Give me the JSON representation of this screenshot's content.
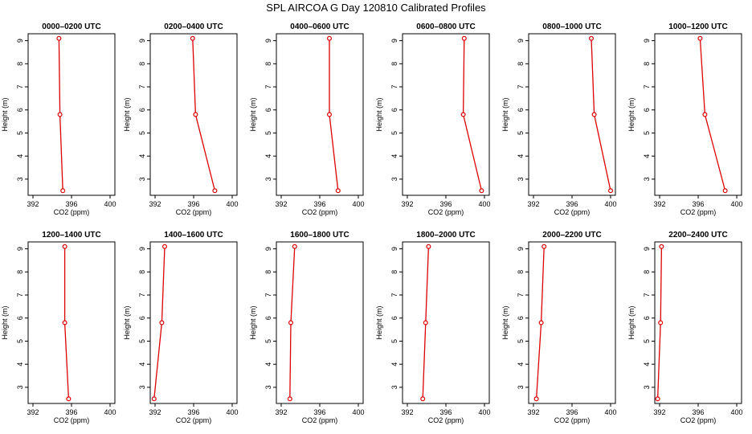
{
  "figure": {
    "title": "SPL AIRCOA G  Day 120810  Calibrated Profiles"
  },
  "style": {
    "line_color": "#dd0000",
    "marker_color": "#dd0000",
    "axis_color": "#000000"
  },
  "chart_data": [
    {
      "type": "line",
      "title": "0000–0200 UTC",
      "xlabel": "CO2 (ppm)",
      "ylabel": "Height (m)",
      "xlim": [
        391.5,
        400.5
      ],
      "ylim": [
        2.3,
        9.3
      ],
      "xticks": [
        392,
        396,
        400
      ],
      "yticks": [
        3,
        4,
        5,
        6,
        7,
        8,
        9
      ],
      "series": [
        {
          "x": [
            395.1,
            394.8,
            394.7
          ],
          "y": [
            2.5,
            5.8,
            9.1
          ]
        }
      ]
    },
    {
      "type": "line",
      "title": "0200–0400 UTC",
      "xlabel": "CO2 (ppm)",
      "ylabel": "Height (m)",
      "xlim": [
        391.5,
        400.5
      ],
      "ylim": [
        2.3,
        9.3
      ],
      "xticks": [
        392,
        396,
        400
      ],
      "yticks": [
        3,
        4,
        5,
        6,
        7,
        8,
        9
      ],
      "series": [
        {
          "x": [
            398.2,
            396.2,
            395.9
          ],
          "y": [
            2.5,
            5.8,
            9.1
          ]
        }
      ]
    },
    {
      "type": "line",
      "title": "0400–0600 UTC",
      "xlabel": "CO2 (ppm)",
      "ylabel": "Height (m)",
      "xlim": [
        391.5,
        400.5
      ],
      "ylim": [
        2.3,
        9.3
      ],
      "xticks": [
        392,
        396,
        400
      ],
      "yticks": [
        3,
        4,
        5,
        6,
        7,
        8,
        9
      ],
      "series": [
        {
          "x": [
            397.9,
            397.0,
            397.0
          ],
          "y": [
            2.5,
            5.8,
            9.1
          ]
        }
      ]
    },
    {
      "type": "line",
      "title": "0600–0800 UTC",
      "xlabel": "CO2 (ppm)",
      "ylabel": "Height (m)",
      "xlim": [
        391.5,
        400.5
      ],
      "ylim": [
        2.3,
        9.3
      ],
      "xticks": [
        392,
        396,
        400
      ],
      "yticks": [
        3,
        4,
        5,
        6,
        7,
        8,
        9
      ],
      "series": [
        {
          "x": [
            399.7,
            397.8,
            397.9
          ],
          "y": [
            2.5,
            5.8,
            9.1
          ]
        }
      ]
    },
    {
      "type": "line",
      "title": "0800–1000 UTC",
      "xlabel": "CO2 (ppm)",
      "ylabel": "Height (m)",
      "xlim": [
        391.5,
        400.5
      ],
      "ylim": [
        2.3,
        9.3
      ],
      "xticks": [
        392,
        396,
        400
      ],
      "yticks": [
        3,
        4,
        5,
        6,
        7,
        8,
        9
      ],
      "series": [
        {
          "x": [
            400.0,
            398.3,
            398.0
          ],
          "y": [
            2.5,
            5.8,
            9.1
          ]
        }
      ]
    },
    {
      "type": "line",
      "title": "1000–1200 UTC",
      "xlabel": "CO2 (ppm)",
      "ylabel": "Height (m)",
      "xlim": [
        391.5,
        400.5
      ],
      "ylim": [
        2.3,
        9.3
      ],
      "xticks": [
        392,
        396,
        400
      ],
      "yticks": [
        3,
        4,
        5,
        6,
        7,
        8,
        9
      ],
      "series": [
        {
          "x": [
            398.8,
            396.7,
            396.2
          ],
          "y": [
            2.5,
            5.8,
            9.1
          ]
        }
      ]
    },
    {
      "type": "line",
      "title": "1200–1400 UTC",
      "xlabel": "CO2 (ppm)",
      "ylabel": "Height (m)",
      "xlim": [
        391.5,
        400.5
      ],
      "ylim": [
        2.3,
        9.3
      ],
      "xticks": [
        392,
        396,
        400
      ],
      "yticks": [
        3,
        4,
        5,
        6,
        7,
        8,
        9
      ],
      "series": [
        {
          "x": [
            395.7,
            395.3,
            395.3
          ],
          "y": [
            2.5,
            5.8,
            9.1
          ]
        }
      ]
    },
    {
      "type": "line",
      "title": "1400–1600 UTC",
      "xlabel": "CO2 (ppm)",
      "ylabel": "Height (m)",
      "xlim": [
        391.5,
        400.5
      ],
      "ylim": [
        2.3,
        9.3
      ],
      "xticks": [
        392,
        396,
        400
      ],
      "yticks": [
        3,
        4,
        5,
        6,
        7,
        8,
        9
      ],
      "series": [
        {
          "x": [
            391.9,
            392.7,
            393.0
          ],
          "y": [
            2.5,
            5.8,
            9.1
          ]
        }
      ]
    },
    {
      "type": "line",
      "title": "1600–1800 UTC",
      "xlabel": "CO2 (ppm)",
      "ylabel": "Height (m)",
      "xlim": [
        391.5,
        400.5
      ],
      "ylim": [
        2.3,
        9.3
      ],
      "xticks": [
        392,
        396,
        400
      ],
      "yticks": [
        3,
        4,
        5,
        6,
        7,
        8,
        9
      ],
      "series": [
        {
          "x": [
            392.9,
            393.0,
            393.4
          ],
          "y": [
            2.5,
            5.8,
            9.1
          ]
        }
      ]
    },
    {
      "type": "line",
      "title": "1800–2000 UTC",
      "xlabel": "CO2 (ppm)",
      "ylabel": "Height (m)",
      "xlim": [
        391.5,
        400.5
      ],
      "ylim": [
        2.3,
        9.3
      ],
      "xticks": [
        392,
        396,
        400
      ],
      "yticks": [
        3,
        4,
        5,
        6,
        7,
        8,
        9
      ],
      "series": [
        {
          "x": [
            393.6,
            393.9,
            394.2
          ],
          "y": [
            2.5,
            5.8,
            9.1
          ]
        }
      ]
    },
    {
      "type": "line",
      "title": "2000–2200 UTC",
      "xlabel": "CO2 (ppm)",
      "ylabel": "Height (m)",
      "xlim": [
        391.5,
        400.5
      ],
      "ylim": [
        2.3,
        9.3
      ],
      "xticks": [
        392,
        396,
        400
      ],
      "yticks": [
        3,
        4,
        5,
        6,
        7,
        8,
        9
      ],
      "series": [
        {
          "x": [
            392.3,
            392.8,
            393.1
          ],
          "y": [
            2.5,
            5.8,
            9.1
          ]
        }
      ]
    },
    {
      "type": "line",
      "title": "2200–2400 UTC",
      "xlabel": "CO2 (ppm)",
      "ylabel": "Height (m)",
      "xlim": [
        391.5,
        400.5
      ],
      "ylim": [
        2.3,
        9.3
      ],
      "xticks": [
        392,
        396,
        400
      ],
      "yticks": [
        3,
        4,
        5,
        6,
        7,
        8,
        9
      ],
      "series": [
        {
          "x": [
            391.8,
            392.1,
            392.2
          ],
          "y": [
            2.5,
            5.8,
            9.1
          ]
        }
      ]
    }
  ]
}
